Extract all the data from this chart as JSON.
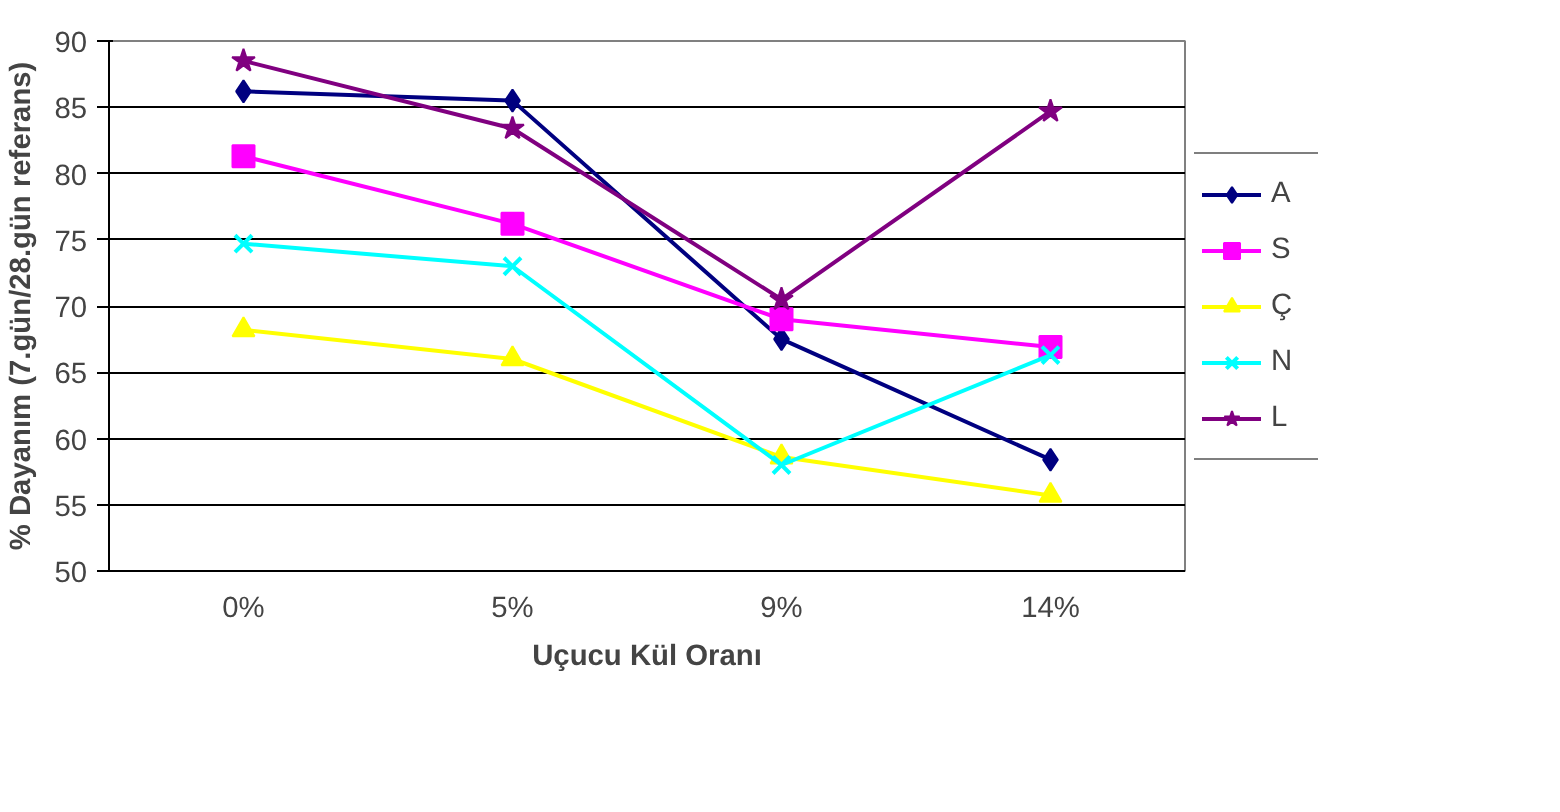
{
  "chart_data": {
    "type": "line",
    "xlabel": "Uçucu Kül Oranı",
    "ylabel": "% Dayanım (7.gün/28.gün referans)",
    "categories": [
      "0%",
      "5%",
      "9%",
      "14%"
    ],
    "series": [
      {
        "name": "A",
        "color": "#000080",
        "marker": "diamond",
        "values": [
          86.2,
          85.5,
          67.5,
          58.4
        ]
      },
      {
        "name": "S",
        "color": "#ff00ff",
        "marker": "square",
        "values": [
          81.3,
          76.2,
          69,
          66.9
        ]
      },
      {
        "name": "Ç",
        "color": "#ffff00",
        "marker": "triangle",
        "values": [
          68.2,
          66,
          58.6,
          55.7
        ]
      },
      {
        "name": "N",
        "color": "#00ffff",
        "marker": "cross",
        "values": [
          74.7,
          73,
          58,
          66.3
        ]
      },
      {
        "name": "L",
        "color": "#800080",
        "marker": "star",
        "values": [
          88.5,
          83.4,
          70.5,
          84.7
        ]
      }
    ],
    "ylim": [
      50,
      90
    ],
    "yticks": [
      50,
      55,
      60,
      65,
      70,
      75,
      80,
      85,
      90
    ],
    "grid": "y",
    "legend": "right"
  }
}
